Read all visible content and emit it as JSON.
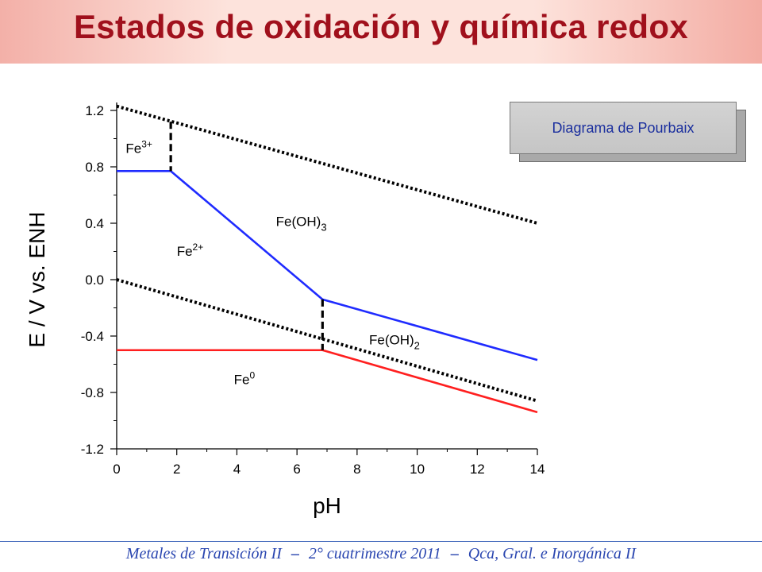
{
  "slide": {
    "title": "Estados de oxidación y química redox",
    "callout": "Diagrama de Pourbaix"
  },
  "footer": {
    "parts": [
      "Metales de Transición II",
      "2° cuatrimestre 2011",
      "Qca, Gral. e Inorgánica II"
    ],
    "separator": "–"
  },
  "colors": {
    "title": "#a0101c",
    "footer": "#2a46b0",
    "blue_line": "#1f2bff",
    "red_line": "#ff1f1f",
    "dashed": "#000000"
  },
  "chart_data": {
    "type": "line",
    "xlabel": "pH",
    "ylabel": "E / V vs. ENH",
    "xlim": [
      0,
      14
    ],
    "ylim": [
      -1.2,
      1.2
    ],
    "xticks": [
      "0",
      "2",
      "4",
      "6",
      "8",
      "10",
      "12",
      "14"
    ],
    "yticks": [
      "1.2",
      "0.8",
      "0.4",
      "0.0",
      "-0.4",
      "-0.8",
      "-1.2"
    ],
    "xtick_values": [
      0,
      2,
      4,
      6,
      8,
      10,
      12,
      14
    ],
    "ytick_values": [
      1.2,
      0.8,
      0.4,
      0.0,
      -0.4,
      -0.8,
      -1.2
    ],
    "grid": false,
    "series": [
      {
        "style": "dotted",
        "color": "#000000",
        "points": [
          [
            0,
            1.23
          ],
          [
            14,
            0.4
          ]
        ]
      },
      {
        "style": "dotted",
        "color": "#000000",
        "points": [
          [
            0,
            0.0
          ],
          [
            14,
            -0.86
          ]
        ]
      },
      {
        "style": "solid",
        "color": "#1f2bff",
        "points": [
          [
            0,
            0.77
          ],
          [
            1.8,
            0.77
          ],
          [
            6.85,
            -0.14
          ],
          [
            14,
            -0.57
          ]
        ]
      },
      {
        "style": "solid",
        "color": "#ff1f1f",
        "points": [
          [
            0,
            -0.5
          ],
          [
            6.85,
            -0.5
          ],
          [
            14,
            -0.94
          ]
        ]
      },
      {
        "style": "dashed",
        "color": "#000000",
        "points": [
          [
            1.8,
            1.12
          ],
          [
            1.8,
            0.77
          ]
        ]
      },
      {
        "style": "dashed",
        "color": "#000000",
        "points": [
          [
            6.85,
            -0.14
          ],
          [
            6.85,
            -0.5
          ]
        ]
      }
    ],
    "regions": [
      {
        "label": "Fe",
        "sup": "3+",
        "sub": "",
        "x": 0.3,
        "y": 0.9
      },
      {
        "label": "Fe",
        "sup": "2+",
        "sub": "",
        "x": 2.0,
        "y": 0.17
      },
      {
        "label": "Fe(OH)",
        "sup": "",
        "sub": "3",
        "x": 5.3,
        "y": 0.38
      },
      {
        "label": "Fe(OH)",
        "sup": "",
        "sub": "2",
        "x": 8.4,
        "y": -0.46
      },
      {
        "label": "Fe",
        "sup": "0",
        "sub": "",
        "x": 3.9,
        "y": -0.74
      }
    ]
  }
}
